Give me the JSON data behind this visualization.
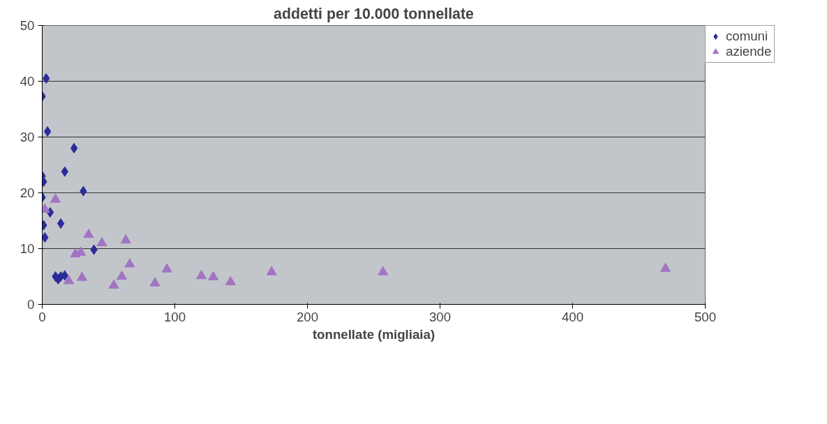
{
  "chart_data": {
    "type": "scatter",
    "title": "addetti per 10.000 tonnellate",
    "xlabel": "tonnellate (migliaia)",
    "xlim": [
      0,
      500
    ],
    "xticks": [
      0,
      100,
      200,
      300,
      400,
      500
    ],
    "ylim": [
      0,
      50
    ],
    "yticks": [
      0,
      10,
      20,
      30,
      40,
      50
    ],
    "grid": "y",
    "legend": "top right",
    "series": [
      {
        "name": "comuni",
        "color": "#2b2b9a",
        "marker": "diamond",
        "x": [
          3,
          0,
          4,
          24,
          17,
          0,
          1,
          31,
          0,
          6,
          1,
          14,
          2,
          39,
          10,
          12,
          17,
          14
        ],
        "values": [
          40.5,
          37.3,
          31,
          28,
          23.8,
          23,
          22,
          20.3,
          19.2,
          16.5,
          14.2,
          14.5,
          12,
          9.8,
          5,
          4.5,
          5.2,
          5
        ]
      },
      {
        "name": "aziende",
        "color": "#a274c4",
        "marker": "triangle",
        "x": [
          10,
          2,
          35,
          45,
          63,
          66,
          25,
          29,
          94,
          20,
          30,
          54,
          60,
          85,
          120,
          129,
          142,
          173,
          257,
          470
        ],
        "values": [
          18.8,
          17,
          12.5,
          11,
          11.5,
          7.2,
          9,
          9.3,
          6.3,
          4.2,
          4.8,
          3.4,
          5,
          3.8,
          5.1,
          4.9,
          4,
          5.8,
          5.8,
          6.4
        ]
      }
    ]
  }
}
